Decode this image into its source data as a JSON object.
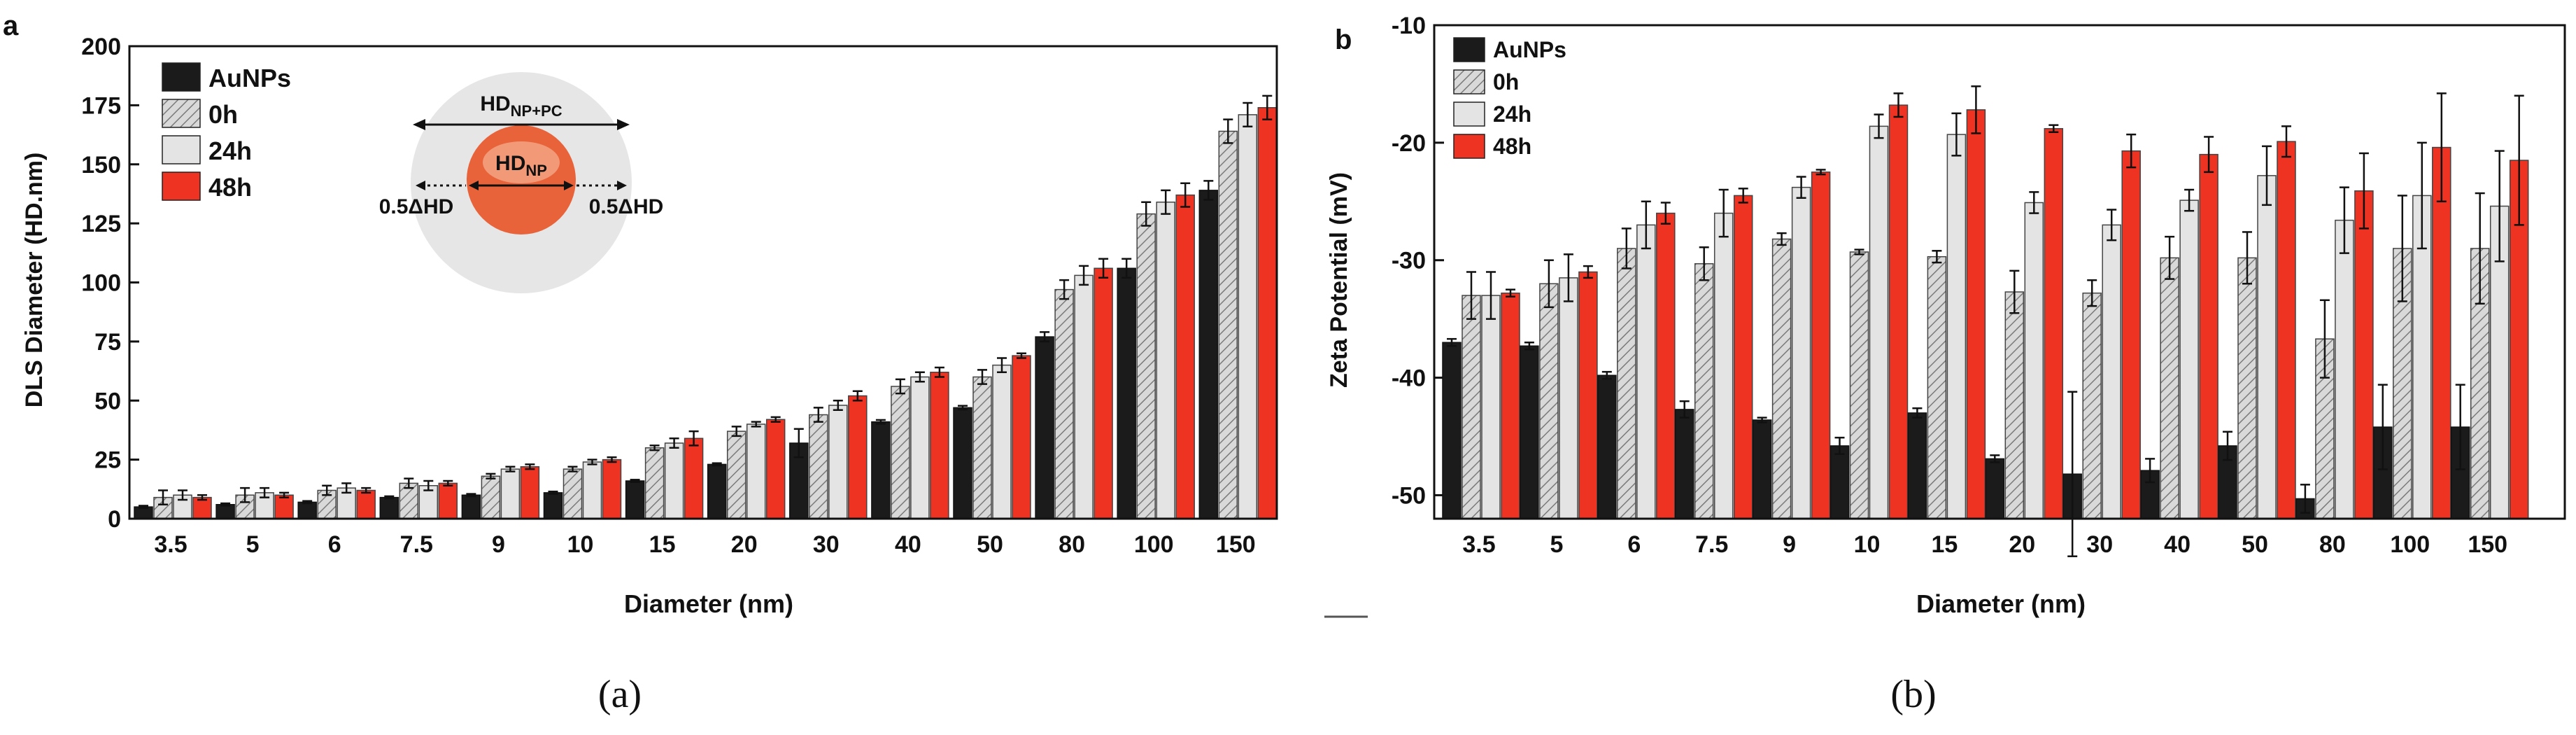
{
  "colors": {
    "AuNPs": "#1b1b1b",
    "0h": "#d6d6d6",
    "24h": "#e4e4e4",
    "48h": "#ee3322",
    "axis": "#111111",
    "np_core": "#e8623a",
    "corona": "#e6e6e6"
  },
  "captions": {
    "a": "(a)",
    "b": "(b)"
  },
  "chart_data": [
    {
      "id": "a",
      "type": "bar",
      "panel_label": "a",
      "title": "",
      "xlabel": "Diameter (nm)",
      "ylabel": "DLS Diameter (HD.nm)",
      "ylim": [
        0,
        200
      ],
      "yticks": [
        "0",
        "25",
        "50",
        "75",
        "100",
        "125",
        "150",
        "175",
        "200"
      ],
      "grid": false,
      "legend_position": "top-left",
      "categories": [
        "3.5",
        "5",
        "6",
        "7.5",
        "9",
        "10",
        "15",
        "20",
        "30",
        "40",
        "50",
        "80",
        "100",
        "150"
      ],
      "series": [
        {
          "name": "AuNPs",
          "values": [
            5,
            6,
            7,
            9,
            10,
            11,
            16,
            23,
            32,
            41,
            47,
            77,
            106,
            139
          ],
          "errors": [
            0.5,
            0.5,
            0.5,
            0.5,
            0.5,
            0.5,
            0.5,
            0.5,
            6,
            0.8,
            0.8,
            2,
            4,
            4
          ]
        },
        {
          "name": "0h",
          "values": [
            9,
            10,
            12,
            15,
            18,
            21,
            30,
            37,
            44,
            56,
            60,
            97,
            129,
            164
          ],
          "errors": [
            3,
            3,
            2,
            2,
            1,
            1,
            1,
            2,
            3,
            3,
            3,
            4,
            5,
            5
          ]
        },
        {
          "name": "24h",
          "values": [
            10,
            11,
            13,
            14,
            21,
            24,
            32,
            40,
            48,
            60,
            65,
            103,
            134,
            171
          ],
          "errors": [
            2,
            2,
            2,
            2,
            1,
            1,
            2,
            1,
            2,
            2,
            3,
            4,
            5,
            5
          ]
        },
        {
          "name": "48h",
          "values": [
            9,
            10,
            12,
            15,
            22,
            25,
            34,
            42,
            52,
            62,
            69,
            106,
            137,
            174
          ],
          "errors": [
            1,
            1,
            1,
            1,
            1,
            1,
            3,
            1,
            2,
            2,
            1,
            4,
            5,
            5
          ]
        }
      ],
      "inset": {
        "outer_label_main": "HD",
        "outer_label_sub": "NP+PC",
        "inner_label_main": "HD",
        "inner_label_sub": "NP",
        "left_label": "0.5ΔHD",
        "right_label": "0.5ΔHD"
      }
    },
    {
      "id": "b",
      "type": "bar",
      "panel_label": "b",
      "title": "",
      "xlabel": "Diameter (nm)",
      "ylabel": "Zeta Potential (mV)",
      "ylim": [
        -52,
        -10
      ],
      "yticks": [
        "-10",
        "-20",
        "-30",
        "-40",
        "-50"
      ],
      "ytick_values": [
        -10,
        -20,
        -30,
        -40,
        -50
      ],
      "grid": false,
      "legend_position": "top-left",
      "categories": [
        "3.5",
        "5",
        "6",
        "7.5",
        "9",
        "10",
        "15",
        "20",
        "30",
        "40",
        "50",
        "80",
        "100",
        "150"
      ],
      "series": [
        {
          "name": "AuNPs",
          "values": [
            -37,
            -37.3,
            -39.8,
            -42.7,
            -43.6,
            -45.8,
            -43,
            -46.9,
            -48.2,
            -47.9,
            -45.8,
            -50.3,
            -44.2,
            -44.2
          ],
          "errors": [
            0.3,
            0.3,
            0.3,
            0.7,
            0.2,
            0.7,
            0.4,
            0.3,
            7,
            1,
            1.2,
            1.2,
            3.6,
            3.6
          ]
        },
        {
          "name": "0h",
          "values": [
            -33,
            -32,
            -29,
            -30.3,
            -28.2,
            -29.3,
            -29.7,
            -32.7,
            -32.8,
            -29.8,
            -29.8,
            -36.7,
            -29,
            -29
          ],
          "errors": [
            2,
            2,
            1.7,
            1.4,
            0.5,
            0.2,
            0.5,
            1.8,
            1.1,
            1.8,
            2.2,
            3.3,
            4.5,
            4.7
          ]
        },
        {
          "name": "24h",
          "values": [
            -33,
            -31.5,
            -27,
            -26,
            -23.8,
            -18.6,
            -19.3,
            -25.1,
            -27,
            -24.9,
            -22.8,
            -26.6,
            -24.5,
            -25.4
          ],
          "errors": [
            2,
            2,
            2,
            2,
            0.9,
            1,
            1.8,
            0.9,
            1.3,
            0.9,
            2.5,
            2.8,
            4.5,
            4.7
          ]
        },
        {
          "name": "48h",
          "values": [
            -32.8,
            -31,
            -26,
            -24.5,
            -22.5,
            -16.8,
            -17.2,
            -18.8,
            -20.7,
            -21,
            -19.9,
            -24.1,
            -20.4,
            -21.5
          ],
          "errors": [
            0.3,
            0.5,
            0.9,
            0.6,
            0.2,
            1,
            2,
            0.3,
            1.4,
            1.5,
            1.3,
            3.2,
            4.6,
            5.5
          ]
        }
      ]
    }
  ]
}
